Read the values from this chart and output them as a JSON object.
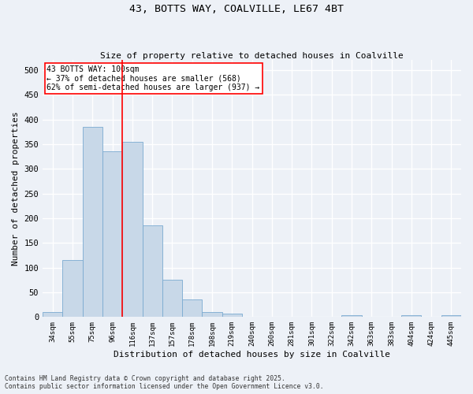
{
  "title1": "43, BOTTS WAY, COALVILLE, LE67 4BT",
  "title2": "Size of property relative to detached houses in Coalville",
  "xlabel": "Distribution of detached houses by size in Coalville",
  "ylabel": "Number of detached properties",
  "categories": [
    "34sqm",
    "55sqm",
    "75sqm",
    "96sqm",
    "116sqm",
    "137sqm",
    "157sqm",
    "178sqm",
    "198sqm",
    "219sqm",
    "240sqm",
    "260sqm",
    "281sqm",
    "301sqm",
    "322sqm",
    "342sqm",
    "363sqm",
    "383sqm",
    "404sqm",
    "424sqm",
    "445sqm"
  ],
  "values": [
    10,
    115,
    385,
    335,
    355,
    185,
    75,
    35,
    10,
    7,
    0,
    0,
    0,
    0,
    0,
    3,
    0,
    0,
    3,
    0,
    3
  ],
  "bar_color": "#c8d8e8",
  "bar_edge_color": "#7aaad0",
  "red_line_x": 3.5,
  "annotation_text": "43 BOTTS WAY: 100sqm\n← 37% of detached houses are smaller (568)\n62% of semi-detached houses are larger (937) →",
  "annotation_box_color": "white",
  "annotation_box_edge": "red",
  "ylim": [
    0,
    520
  ],
  "yticks": [
    0,
    50,
    100,
    150,
    200,
    250,
    300,
    350,
    400,
    450,
    500
  ],
  "footnote1": "Contains HM Land Registry data © Crown copyright and database right 2025.",
  "footnote2": "Contains public sector information licensed under the Open Government Licence v3.0.",
  "background_color": "#edf1f7",
  "grid_color": "white"
}
